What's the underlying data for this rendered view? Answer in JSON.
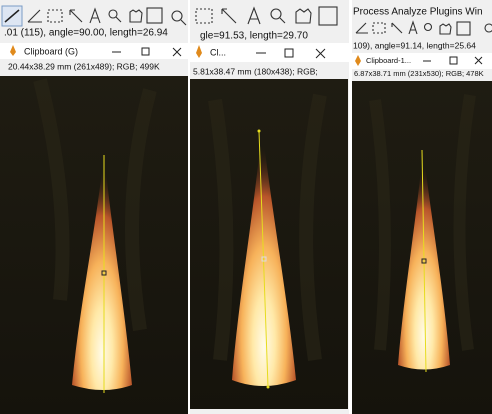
{
  "left": {
    "status": ".01 (115), angle=90.00, length=26.94",
    "title": "Clipboard (G)",
    "info": "20.44x38.29 mm (261x489); RGB; 499K"
  },
  "middle": {
    "status": "gle=91.53, length=29.70",
    "title": "Cl...",
    "info": "5.81x38.47 mm (180x438); RGB;"
  },
  "right": {
    "menu": "Process  Analyze  Plugins  Win",
    "status": "109), angle=91.14, length=25.64",
    "title": "Clipboard-1...",
    "info": "6.87x38.71 mm (231x530); RGB; 478K"
  }
}
